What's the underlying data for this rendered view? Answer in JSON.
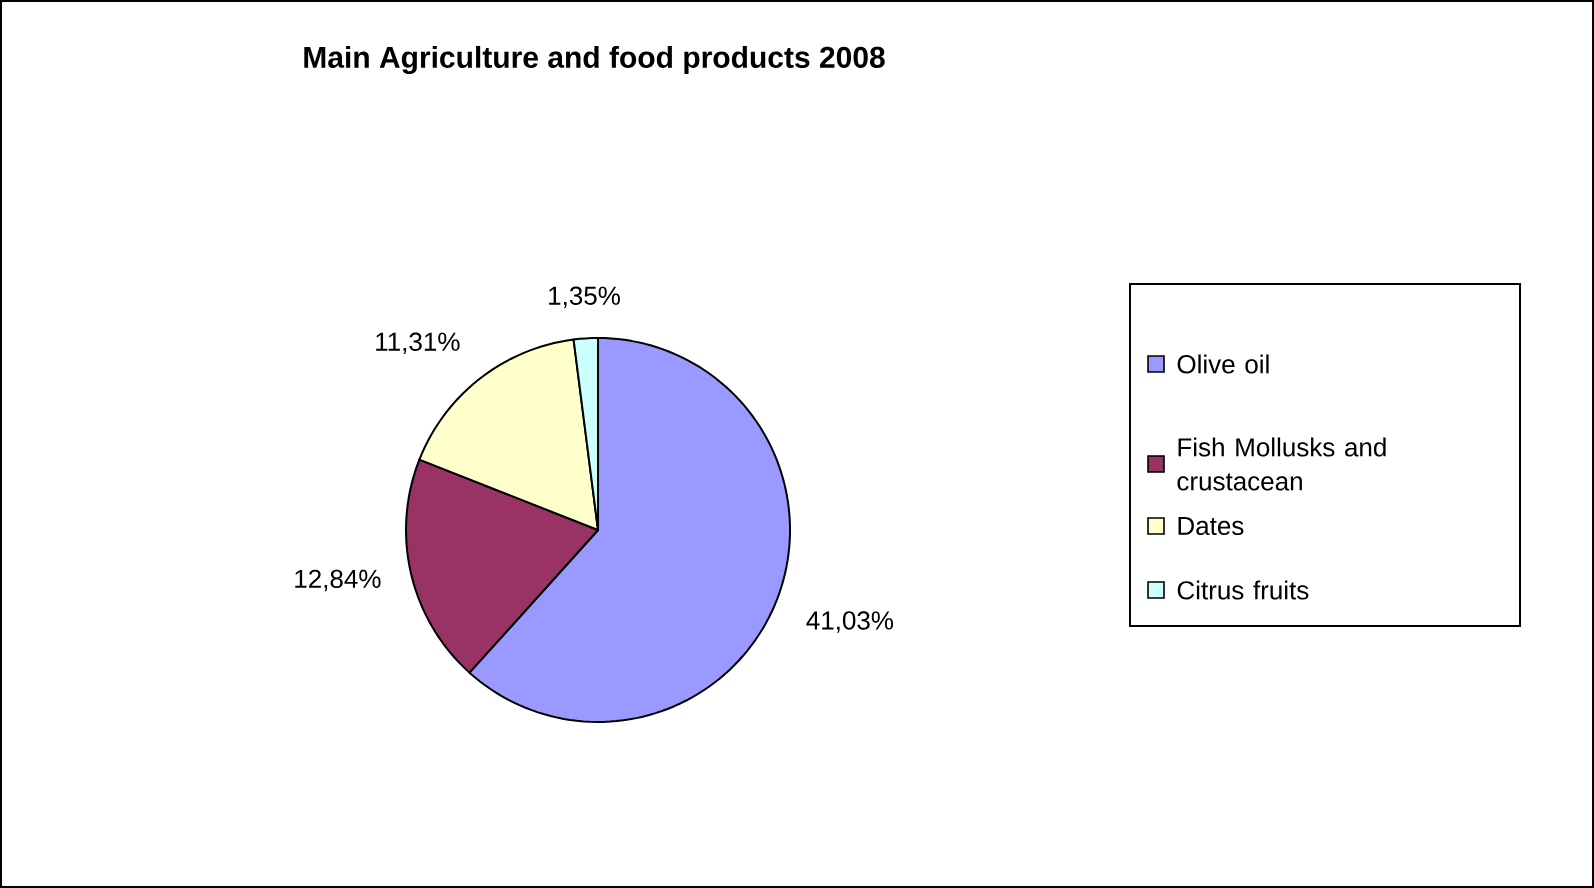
{
  "chart_data": {
    "type": "pie",
    "title": "Main Agriculture and food products 2008",
    "categories": [
      "Olive oil",
      "Fish Mollusks and crustacean",
      "Dates",
      "Citrus fruits"
    ],
    "values": [
      41.03,
      12.84,
      11.31,
      1.35
    ],
    "value_labels": [
      "41,03%",
      "12,84%",
      "11,31%",
      "1,35%"
    ],
    "colors": [
      "#9999ff",
      "#993366",
      "#ffffcc",
      "#ccffff"
    ],
    "legend": "right"
  }
}
